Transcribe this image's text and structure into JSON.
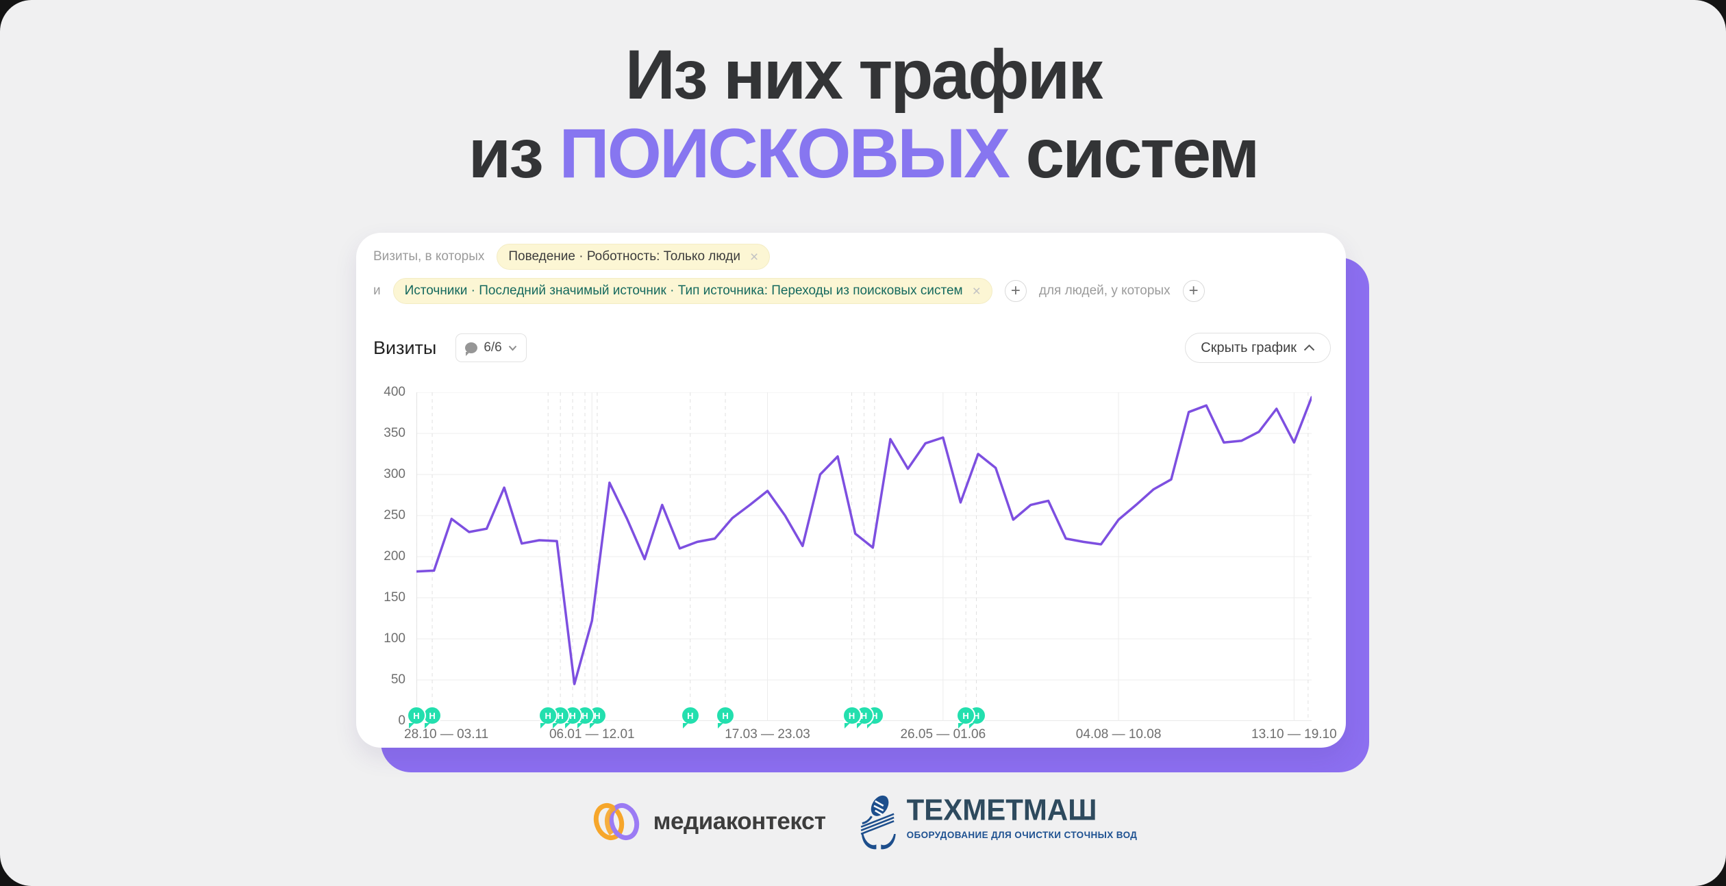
{
  "title": {
    "line1": "Из них трафик",
    "line2_prefix": "из ",
    "line2_highlight": "ПОИСКОВЫХ",
    "line2_suffix": " систем",
    "highlight_color": "#8776f0"
  },
  "filters": {
    "row1_label": "Визиты, в которых",
    "chip1_text": "Поведение · Роботность: Только люди",
    "chip1_close": "×",
    "row2_label": "и",
    "chip2_text": "Источники · Последний значимый источник · Тип источника: Переходы из поисковых систем",
    "chip2_close": "×",
    "add_segment": "+",
    "row2_suffix": "для людей, у которых",
    "add_condition": "+"
  },
  "chart_header": {
    "metric": "Визиты",
    "comments_badge": "6/6",
    "hide_chart": "Скрыть график"
  },
  "chart_data": {
    "type": "line",
    "title": "Визиты",
    "ylim": [
      0,
      400
    ],
    "ytick_step": 50,
    "grid": true,
    "legend": "none",
    "line_color": "#7d4fe0",
    "values": [
      182,
      183,
      246,
      230,
      234,
      284,
      216,
      220,
      219,
      45,
      122,
      290,
      246,
      197,
      263,
      210,
      218,
      222,
      247,
      263,
      280,
      250,
      213,
      300,
      322,
      228,
      211,
      343,
      307,
      338,
      345,
      266,
      325,
      308,
      245,
      263,
      268,
      222,
      218,
      215,
      245,
      263,
      282,
      294,
      376,
      384,
      339,
      341,
      352,
      380,
      339,
      394
    ],
    "x_labels": [
      {
        "text": "28.10 — 03.11",
        "week": 1
      },
      {
        "text": "06.01 — 12.01",
        "week": 10
      },
      {
        "text": "17.03 — 23.03",
        "week": 20
      },
      {
        "text": "26.05 — 01.06",
        "week": 30
      },
      {
        "text": "04.08 — 10.08",
        "week": 40
      },
      {
        "text": "13.10 — 19.10",
        "week": 50
      }
    ],
    "annotations": {
      "letter": "Н",
      "color": "#23dfae",
      "weeks": [
        0,
        0.9,
        7.5,
        8.2,
        8.9,
        9.6,
        10.3,
        15.6,
        17.6,
        24.8,
        25.5,
        26.1,
        31.3,
        31.9,
        50.8
      ]
    }
  },
  "footer": {
    "mediakontekst": "медиаконтекст",
    "tehmetmash": "ТЕХМЕТМАШ",
    "tagline": "ОБОРУДОВАНИЕ ДЛЯ ОЧИСТКИ СТОЧНЫХ ВОД",
    "ring_orange": "#f6a62b",
    "ring_purple": "#9b7bf4",
    "emblem_blue": "#1d4e8c"
  }
}
